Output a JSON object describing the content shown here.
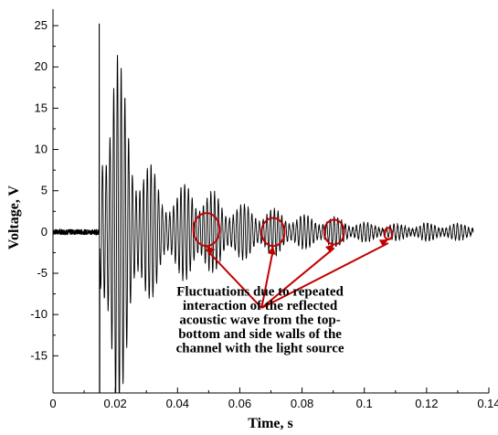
{
  "chart_data": {
    "type": "line",
    "title": "",
    "xlabel": "Time, s",
    "ylabel": "Voltage, V",
    "xlim": [
      0,
      0.14
    ],
    "ylim": [
      -19.5,
      27
    ],
    "grid": false,
    "x_ticks": [
      0,
      0.02,
      0.04,
      0.06,
      0.08,
      0.1,
      0.12,
      0.14
    ],
    "x_tick_labels": [
      "0",
      "0.02",
      "0.04",
      "0.06",
      "0.08",
      "0.1",
      "0.12",
      "0.14"
    ],
    "y_ticks": [
      -15,
      -10,
      -5,
      0,
      5,
      10,
      15,
      20,
      25
    ],
    "y_tick_labels": [
      "-15",
      "-10",
      "-5",
      "0",
      "5",
      "10",
      "15",
      "20",
      "25"
    ],
    "series": [
      {
        "color": "#000000",
        "signal": {
          "t_start": 0,
          "t_end": 0.135,
          "baseline_noise_end": 0.0148,
          "spike_time": 0.0148,
          "spike_peak": 25.2,
          "spike_trough": -19.5,
          "oscillation_period": 0.0012,
          "envelope": [
            [
              0.015,
              8
            ],
            [
              0.016,
              15
            ],
            [
              0.018,
              21
            ],
            [
              0.02,
              23
            ],
            [
              0.022,
              17
            ],
            [
              0.025,
              12
            ],
            [
              0.03,
              8
            ],
            [
              0.035,
              5
            ],
            [
              0.04,
              4.5
            ],
            [
              0.045,
              6
            ],
            [
              0.05,
              4.5
            ],
            [
              0.06,
              3
            ],
            [
              0.07,
              2.5
            ],
            [
              0.08,
              1.8
            ],
            [
              0.09,
              1.6
            ],
            [
              0.1,
              1.0
            ],
            [
              0.11,
              0.8
            ],
            [
              0.12,
              0.9
            ],
            [
              0.135,
              0.8
            ]
          ]
        }
      }
    ],
    "annotations": {
      "circles": [
        {
          "x": 0.0493,
          "y": 0.3,
          "rx": 0.0042,
          "ry": 2.0
        },
        {
          "x": 0.0707,
          "y": 0.0,
          "rx": 0.0037,
          "ry": 1.7
        },
        {
          "x": 0.0903,
          "y": 0.0,
          "rx": 0.0032,
          "ry": 1.5
        },
        {
          "x": 0.1077,
          "y": -0.2,
          "rx": 0.0013,
          "ry": 0.7
        }
      ],
      "arrow_origin": {
        "x": 0.067,
        "y": -9.2
      },
      "circle_color": "#c00000",
      "note_lines": [
        "Fluctuations due to repeated",
        "interaction of the reflected",
        "acoustic wave from the top-",
        "bottom and side walls of the",
        "channel with the light source"
      ],
      "note_position": {
        "x": 0.0665,
        "y": -7.7
      }
    }
  }
}
